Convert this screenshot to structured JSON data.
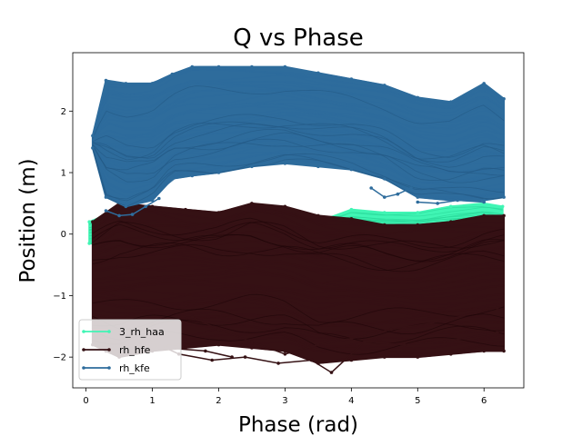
{
  "chart_data": {
    "type": "line",
    "title": "Q vs Phase",
    "xlabel": "Phase (rad)",
    "ylabel": "Position (m)",
    "xlim": [
      -0.2,
      6.6
    ],
    "ylim": [
      -2.5,
      2.95
    ],
    "xticks": [
      0,
      1,
      2,
      3,
      4,
      5,
      6
    ],
    "yticks": [
      -2,
      -1,
      0,
      1,
      2
    ],
    "grid": false,
    "legend_position": "lower-left",
    "series": [
      {
        "name": "3_rh_haa",
        "color": "#40f5b4",
        "band": {
          "x": [
            0.05,
            0.5,
            1.0,
            1.5,
            2.0,
            2.5,
            3.0,
            3.5,
            4.0,
            4.5,
            5.0,
            5.5,
            6.0,
            6.28
          ],
          "upper": [
            0.2,
            0.4,
            0.35,
            0.25,
            0.2,
            0.15,
            0.15,
            0.2,
            0.4,
            0.35,
            0.35,
            0.45,
            0.5,
            0.45
          ],
          "lower": [
            -0.15,
            -0.2,
            -0.25,
            -0.2,
            -0.15,
            -0.15,
            -0.2,
            -0.1,
            0.0,
            -0.05,
            -0.05,
            0.0,
            0.05,
            0.0
          ]
        }
      },
      {
        "name": "rh_hfe",
        "color": "#351114",
        "band": {
          "x": [
            0.1,
            0.5,
            1.0,
            1.5,
            2.0,
            2.5,
            3.0,
            3.5,
            4.0,
            4.5,
            5.0,
            5.5,
            6.0,
            6.3
          ],
          "upper": [
            0.2,
            0.5,
            0.45,
            0.4,
            0.35,
            0.5,
            0.45,
            0.3,
            0.25,
            0.15,
            0.15,
            0.2,
            0.3,
            0.3
          ],
          "lower": [
            -1.8,
            -2.0,
            -1.9,
            -1.85,
            -1.8,
            -1.85,
            -1.9,
            -2.1,
            -2.05,
            -2.0,
            -2.0,
            -1.95,
            -1.9,
            -1.9
          ]
        },
        "outliers": [
          {
            "x": [
              0.9,
              1.4,
              1.9,
              2.4,
              2.9,
              3.4,
              3.7,
              4.2,
              4.8,
              5.4,
              6.2
            ],
            "y": [
              -1.7,
              -1.95,
              -2.05,
              -2.0,
              -2.1,
              -2.05,
              -2.25,
              -1.75,
              -1.8,
              -1.75,
              -1.6
            ]
          },
          {
            "x": [
              1.6,
              2.0,
              2.5,
              3.0,
              3.5,
              4.0,
              4.6,
              5.2,
              6.2
            ],
            "y": [
              -1.35,
              -1.55,
              -1.75,
              -1.95,
              -1.8,
              -1.7,
              -1.55,
              -1.45,
              -1.2
            ]
          },
          {
            "x": [
              0.3,
              0.8,
              1.2,
              1.8,
              2.2
            ],
            "y": [
              -1.9,
              -1.75,
              -1.85,
              -1.9,
              -2.0
            ]
          }
        ]
      },
      {
        "name": "rh_kfe",
        "color": "#2e6c9c",
        "band": {
          "x": [
            0.1,
            0.3,
            0.6,
            1.0,
            1.3,
            1.6,
            2.0,
            2.5,
            3.0,
            3.5,
            4.0,
            4.5,
            5.0,
            5.5,
            6.0,
            6.3
          ],
          "upper": [
            1.6,
            2.5,
            2.45,
            2.45,
            2.6,
            2.72,
            2.72,
            2.72,
            2.72,
            2.62,
            2.52,
            2.42,
            2.22,
            2.15,
            2.45,
            2.2
          ],
          "lower": [
            1.4,
            0.6,
            0.45,
            0.55,
            0.9,
            0.95,
            1.0,
            1.1,
            1.15,
            1.1,
            1.05,
            0.9,
            0.6,
            0.55,
            0.55,
            0.6
          ]
        },
        "outliers": [
          {
            "x": [
              0.3,
              0.5,
              0.7,
              0.9,
              1.1
            ],
            "y": [
              0.38,
              0.3,
              0.32,
              0.45,
              0.58
            ]
          },
          {
            "x": [
              4.3,
              4.5,
              4.7,
              4.9
            ],
            "y": [
              0.75,
              0.6,
              0.65,
              0.75
            ]
          },
          {
            "x": [
              5.0,
              5.3,
              5.6,
              6.0
            ],
            "y": [
              0.52,
              0.5,
              0.55,
              0.52
            ]
          }
        ]
      }
    ],
    "legend": [
      "3_rh_haa",
      "rh_hfe",
      "rh_kfe"
    ]
  }
}
